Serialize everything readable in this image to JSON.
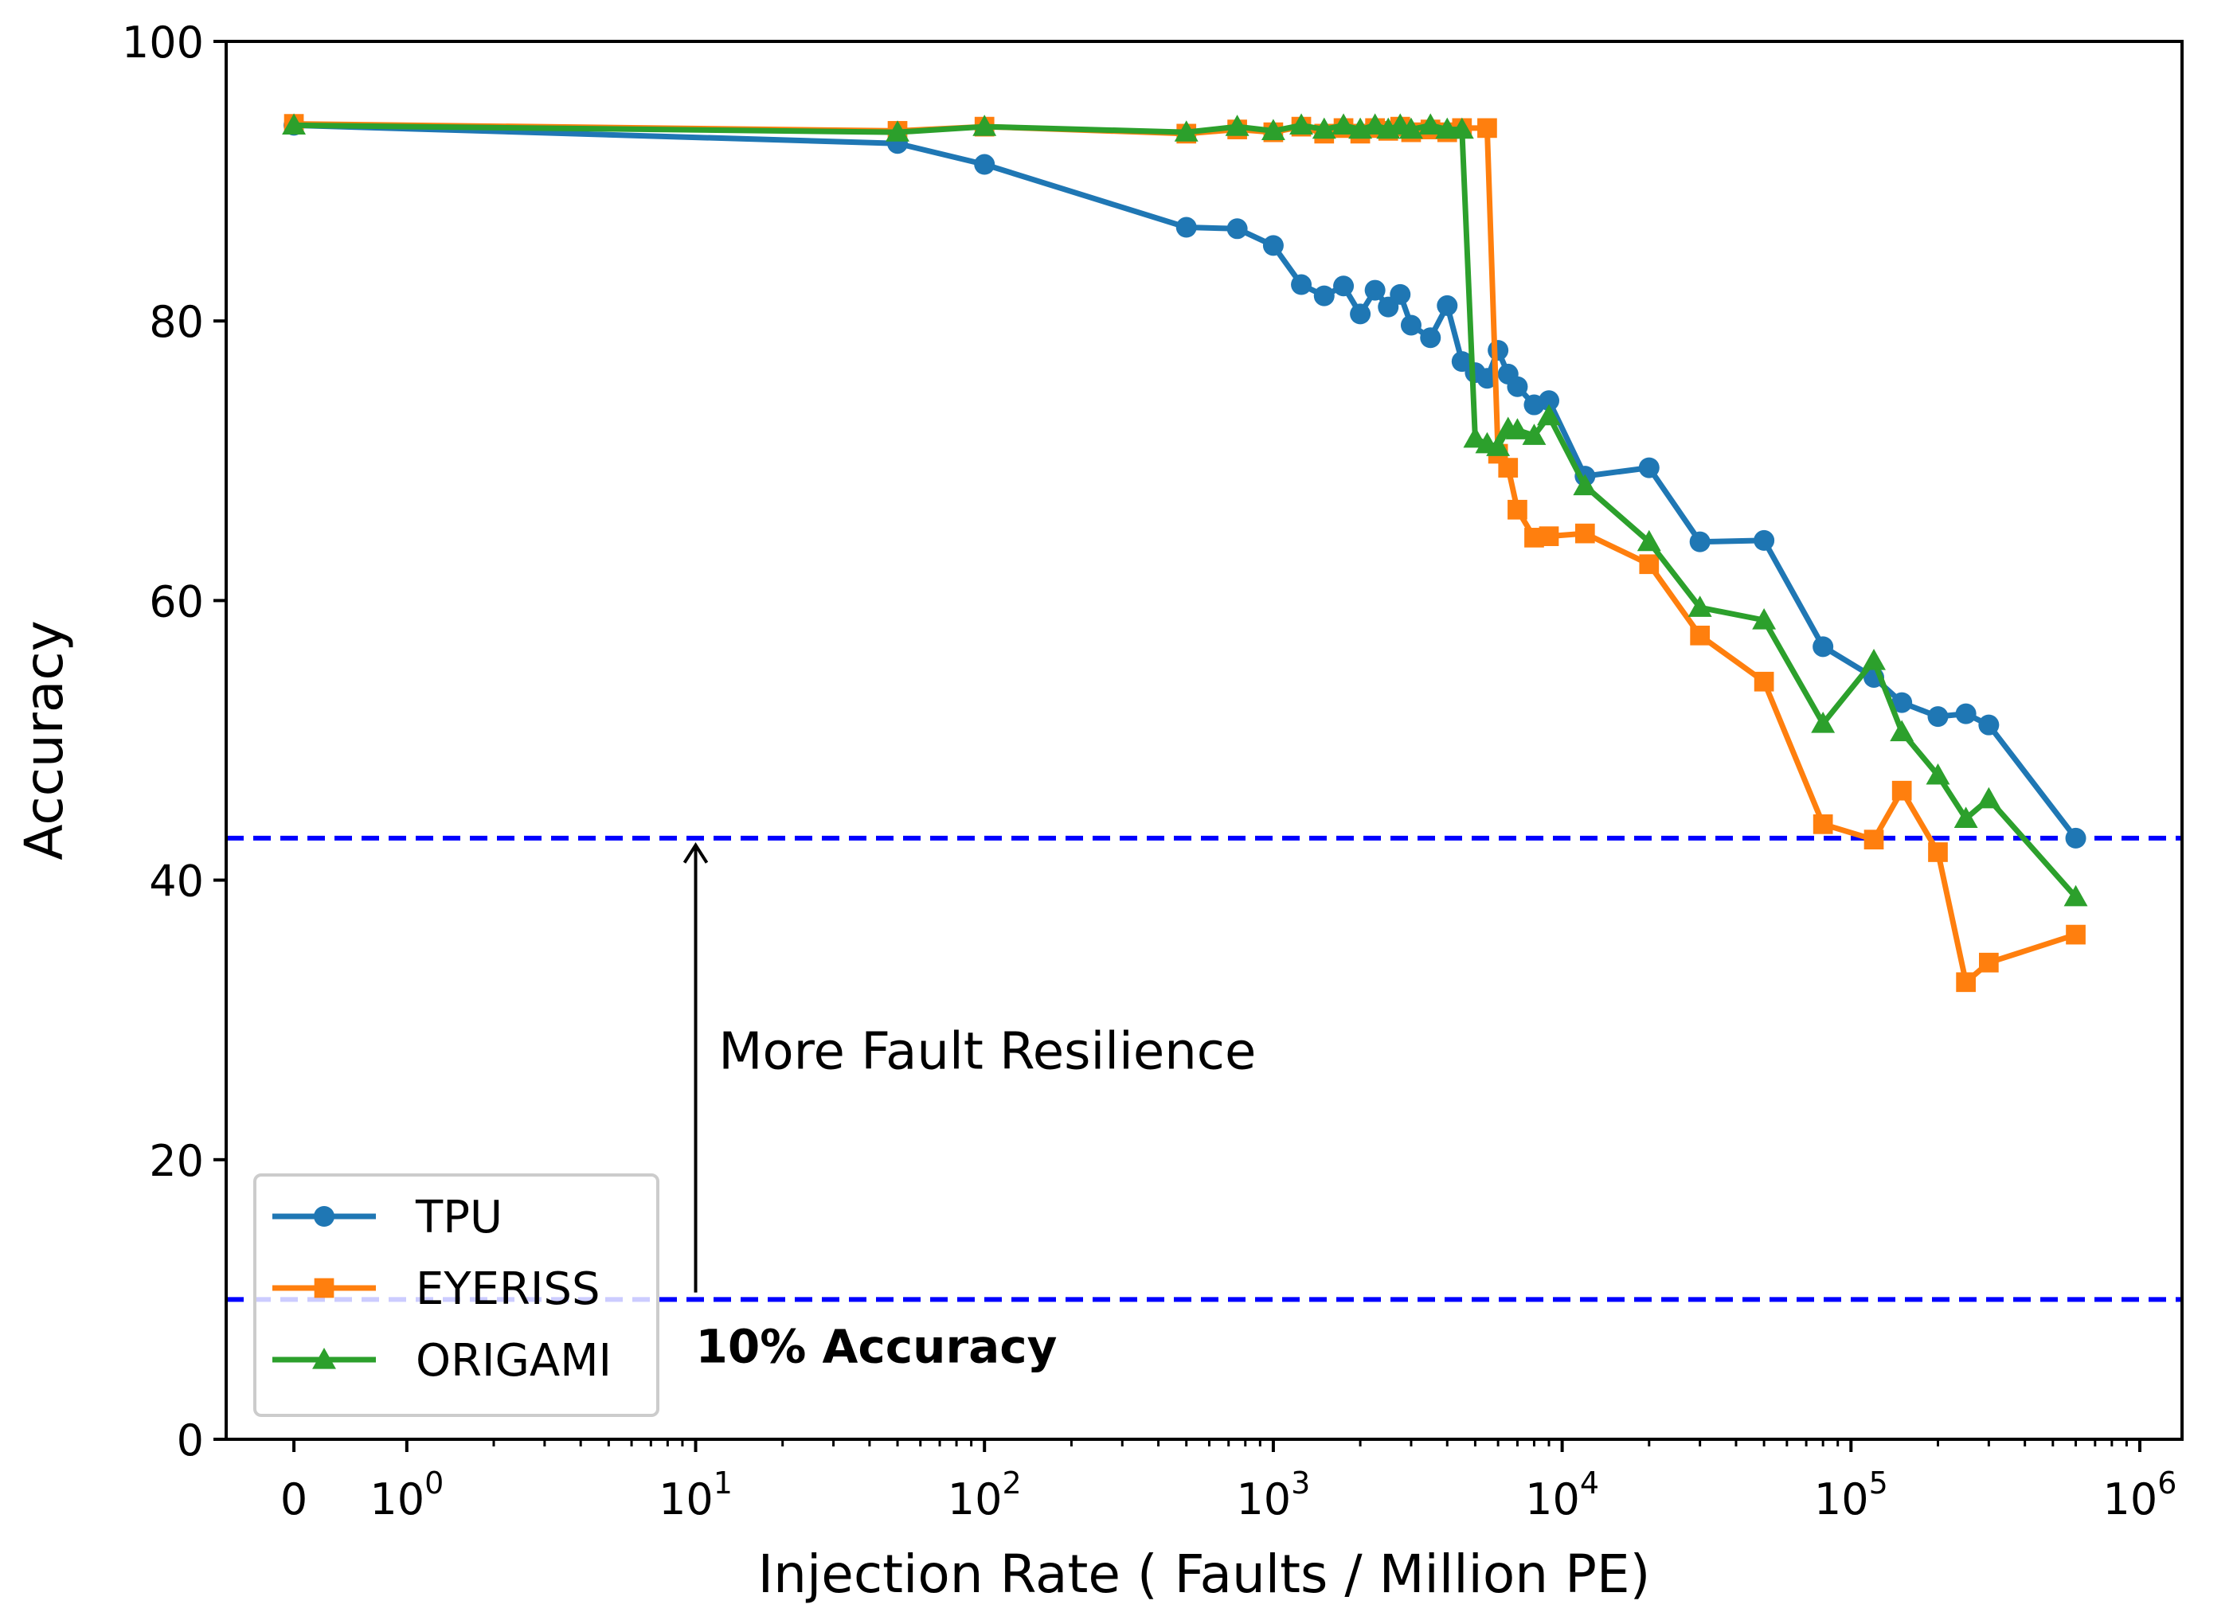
{
  "chart_data": {
    "type": "line",
    "title": "",
    "xlabel": "Injection Rate ( Faults / Million PE)",
    "ylabel": "Accuracy",
    "xscale": "symlog (linear threshold 1)",
    "xlim": [
      -0.6,
      1400000
    ],
    "ylim": [
      0,
      100
    ],
    "grid": false,
    "legend_position": "lower-left",
    "x_ticks": [
      {
        "value": 0,
        "base": "0",
        "exp": ""
      },
      {
        "value": 1,
        "base": "10",
        "exp": "0"
      },
      {
        "value": 10,
        "base": "10",
        "exp": "1"
      },
      {
        "value": 100,
        "base": "10",
        "exp": "2"
      },
      {
        "value": 1000,
        "base": "10",
        "exp": "3"
      },
      {
        "value": 10000,
        "base": "10",
        "exp": "4"
      },
      {
        "value": 100000,
        "base": "10",
        "exp": "5"
      },
      {
        "value": 1000000,
        "base": "10",
        "exp": "6"
      }
    ],
    "y_ticks": [
      {
        "value": 0,
        "label": "0"
      },
      {
        "value": 20,
        "label": "20"
      },
      {
        "value": 40,
        "label": "40"
      },
      {
        "value": 60,
        "label": "60"
      },
      {
        "value": 80,
        "label": "80"
      },
      {
        "value": 100,
        "label": "100"
      }
    ],
    "reference_lines": [
      {
        "y": 43,
        "color": "#0000ff",
        "style": "dashed"
      },
      {
        "y": 10,
        "color": "#0000ff",
        "style": "dashed"
      }
    ],
    "annotations": [
      {
        "text": "More Fault Resilience",
        "x": 12,
        "y": 26.5,
        "bold": false
      },
      {
        "text": "10% Accuracy",
        "x": 10,
        "y": 5.5,
        "bold": true
      }
    ],
    "arrow": {
      "x": 10,
      "from_y": 10.5,
      "to_y": 42.5
    },
    "series": [
      {
        "name": "TPU",
        "color": "#1f77b4",
        "marker": "circle",
        "points": [
          [
            0,
            94.0
          ],
          [
            50,
            92.7
          ],
          [
            100,
            91.2
          ],
          [
            500,
            86.7
          ],
          [
            750,
            86.6
          ],
          [
            1000,
            85.4
          ],
          [
            1250,
            82.6
          ],
          [
            1500,
            81.8
          ],
          [
            1750,
            82.5
          ],
          [
            2000,
            80.5
          ],
          [
            2250,
            82.2
          ],
          [
            2500,
            81.0
          ],
          [
            2750,
            81.9
          ],
          [
            3000,
            79.7
          ],
          [
            3500,
            78.8
          ],
          [
            4000,
            81.1
          ],
          [
            4500,
            77.1
          ],
          [
            5000,
            76.3
          ],
          [
            5500,
            75.9
          ],
          [
            6000,
            77.9
          ],
          [
            6500,
            76.2
          ],
          [
            7000,
            75.3
          ],
          [
            8000,
            74.0
          ],
          [
            9000,
            74.3
          ],
          [
            12000,
            68.9
          ],
          [
            20000,
            69.5
          ],
          [
            30000,
            64.2
          ],
          [
            50000,
            64.3
          ],
          [
            80000,
            56.7
          ],
          [
            120000,
            54.5
          ],
          [
            150000,
            52.7
          ],
          [
            200000,
            51.7
          ],
          [
            250000,
            51.9
          ],
          [
            300000,
            51.1
          ],
          [
            600000,
            43.0
          ]
        ]
      },
      {
        "name": "EYERISS",
        "color": "#ff7f0e",
        "marker": "square",
        "points": [
          [
            0,
            94.1
          ],
          [
            50,
            93.6
          ],
          [
            100,
            93.9
          ],
          [
            500,
            93.4
          ],
          [
            750,
            93.7
          ],
          [
            1000,
            93.5
          ],
          [
            1250,
            93.9
          ],
          [
            1500,
            93.4
          ],
          [
            1750,
            93.8
          ],
          [
            2000,
            93.4
          ],
          [
            2250,
            93.8
          ],
          [
            2500,
            93.6
          ],
          [
            2750,
            93.9
          ],
          [
            3000,
            93.5
          ],
          [
            3500,
            93.7
          ],
          [
            4000,
            93.5
          ],
          [
            4500,
            93.8
          ],
          [
            5500,
            93.8
          ],
          [
            6000,
            70.5
          ],
          [
            6500,
            69.5
          ],
          [
            7000,
            66.5
          ],
          [
            8000,
            64.5
          ],
          [
            9000,
            64.6
          ],
          [
            12000,
            64.8
          ],
          [
            20000,
            62.6
          ],
          [
            30000,
            57.5
          ],
          [
            50000,
            54.2
          ],
          [
            80000,
            44.0
          ],
          [
            120000,
            42.9
          ],
          [
            150000,
            46.4
          ],
          [
            200000,
            42.0
          ],
          [
            250000,
            32.7
          ],
          [
            300000,
            34.1
          ],
          [
            600000,
            36.1
          ]
        ]
      },
      {
        "name": "ORIGAMI",
        "color": "#2ca02c",
        "marker": "triangle",
        "points": [
          [
            0,
            94.0
          ],
          [
            50,
            93.5
          ],
          [
            100,
            93.9
          ],
          [
            500,
            93.5
          ],
          [
            750,
            93.9
          ],
          [
            1000,
            93.6
          ],
          [
            1250,
            94.0
          ],
          [
            1500,
            93.7
          ],
          [
            1750,
            94.0
          ],
          [
            2000,
            93.7
          ],
          [
            2250,
            94.0
          ],
          [
            2500,
            93.7
          ],
          [
            2750,
            94.0
          ],
          [
            3000,
            93.7
          ],
          [
            3500,
            94.0
          ],
          [
            4000,
            93.7
          ],
          [
            4500,
            93.7
          ],
          [
            5000,
            71.6
          ],
          [
            5500,
            71.2
          ],
          [
            6000,
            71.0
          ],
          [
            6500,
            72.3
          ],
          [
            7000,
            72.2
          ],
          [
            8000,
            71.8
          ],
          [
            9000,
            73.2
          ],
          [
            12000,
            68.2
          ],
          [
            20000,
            64.2
          ],
          [
            30000,
            59.5
          ],
          [
            50000,
            58.6
          ],
          [
            80000,
            51.2
          ],
          [
            120000,
            55.7
          ],
          [
            150000,
            50.6
          ],
          [
            200000,
            47.5
          ],
          [
            250000,
            44.4
          ],
          [
            300000,
            45.8
          ],
          [
            600000,
            38.8
          ]
        ]
      }
    ]
  }
}
